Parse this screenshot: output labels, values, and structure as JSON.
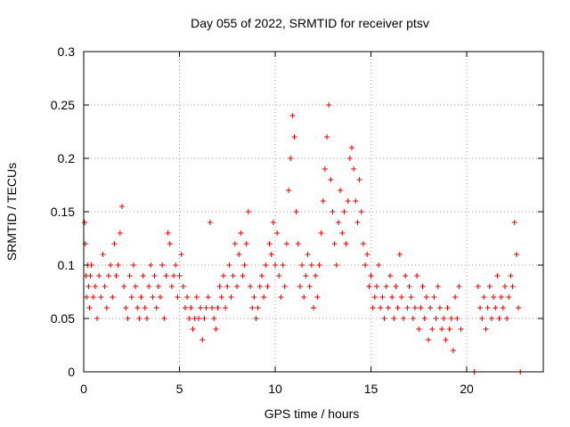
{
  "chart_data": {
    "type": "scatter",
    "title": "Day 055 of 2022, SRMTID for receiver ptsv",
    "xlabel": "GPS time / hours",
    "ylabel": "SRMTID / TECUs",
    "xlim": [
      0,
      24
    ],
    "ylim": [
      0,
      0.3
    ],
    "x_ticks": [
      0,
      5,
      10,
      15,
      20
    ],
    "y_ticks": [
      0,
      0.05,
      0.1,
      0.15,
      0.2,
      0.25,
      0.3
    ],
    "x_tick_labels": [
      "0",
      "5",
      "10",
      "15",
      "20"
    ],
    "y_tick_labels": [
      "0",
      "0.05",
      "0.1",
      "0.15",
      "0.2",
      "0.25",
      "0.3"
    ],
    "grid": true,
    "marker": "+",
    "series": [
      {
        "name": "SRMTID",
        "color": "#e00000",
        "points": [
          [
            0.05,
            0.14
          ],
          [
            0.08,
            0.12
          ],
          [
            0.12,
            0.09
          ],
          [
            0.15,
            0.07
          ],
          [
            0.2,
            0.1
          ],
          [
            0.25,
            0.08
          ],
          [
            0.3,
            0.06
          ],
          [
            0.35,
            0.09
          ],
          [
            0.4,
            0.1
          ],
          [
            0.5,
            0.07
          ],
          [
            0.6,
            0.08
          ],
          [
            0.7,
            0.05
          ],
          [
            0.8,
            0.09
          ],
          [
            0.9,
            0.07
          ],
          [
            1.0,
            0.11
          ],
          [
            1.1,
            0.08
          ],
          [
            1.2,
            0.06
          ],
          [
            1.3,
            0.09
          ],
          [
            1.4,
            0.1
          ],
          [
            1.5,
            0.07
          ],
          [
            1.6,
            0.12
          ],
          [
            1.7,
            0.09
          ],
          [
            1.8,
            0.1
          ],
          [
            1.9,
            0.13
          ],
          [
            2.0,
            0.155
          ],
          [
            2.1,
            0.08
          ],
          [
            2.2,
            0.06
          ],
          [
            2.3,
            0.05
          ],
          [
            2.4,
            0.09
          ],
          [
            2.5,
            0.07
          ],
          [
            2.6,
            0.1
          ],
          [
            2.7,
            0.08
          ],
          [
            2.8,
            0.06
          ],
          [
            2.9,
            0.05
          ],
          [
            3.0,
            0.07
          ],
          [
            3.1,
            0.09
          ],
          [
            3.2,
            0.06
          ],
          [
            3.3,
            0.05
          ],
          [
            3.4,
            0.08
          ],
          [
            3.5,
            0.1
          ],
          [
            3.6,
            0.07
          ],
          [
            3.7,
            0.09
          ],
          [
            3.8,
            0.06
          ],
          [
            3.9,
            0.08
          ],
          [
            4.0,
            0.07
          ],
          [
            4.1,
            0.1
          ],
          [
            4.2,
            0.05
          ],
          [
            4.3,
            0.09
          ],
          [
            4.4,
            0.13
          ],
          [
            4.5,
            0.12
          ],
          [
            4.6,
            0.08
          ],
          [
            4.7,
            0.09
          ],
          [
            4.8,
            0.1
          ],
          [
            4.9,
            0.07
          ],
          [
            5.0,
            0.09
          ],
          [
            5.1,
            0.11
          ],
          [
            5.2,
            0.08
          ],
          [
            5.3,
            0.06
          ],
          [
            5.4,
            0.07
          ],
          [
            5.5,
            0.05
          ],
          [
            5.6,
            0.06
          ],
          [
            5.7,
            0.04
          ],
          [
            5.8,
            0.05
          ],
          [
            5.9,
            0.07
          ],
          [
            6.0,
            0.05
          ],
          [
            6.1,
            0.06
          ],
          [
            6.2,
            0.03
          ],
          [
            6.3,
            0.05
          ],
          [
            6.4,
            0.06
          ],
          [
            6.5,
            0.07
          ],
          [
            6.6,
            0.14
          ],
          [
            6.7,
            0.06
          ],
          [
            6.8,
            0.05
          ],
          [
            6.9,
            0.04
          ],
          [
            7.0,
            0.06
          ],
          [
            7.1,
            0.08
          ],
          [
            7.2,
            0.07
          ],
          [
            7.3,
            0.09
          ],
          [
            7.4,
            0.06
          ],
          [
            7.5,
            0.08
          ],
          [
            7.6,
            0.1
          ],
          [
            7.7,
            0.07
          ],
          [
            7.8,
            0.09
          ],
          [
            7.9,
            0.12
          ],
          [
            8.0,
            0.08
          ],
          [
            8.1,
            0.11
          ],
          [
            8.2,
            0.13
          ],
          [
            8.3,
            0.09
          ],
          [
            8.4,
            0.1
          ],
          [
            8.5,
            0.12
          ],
          [
            8.6,
            0.15
          ],
          [
            8.7,
            0.08
          ],
          [
            8.8,
            0.06
          ],
          [
            8.9,
            0.07
          ],
          [
            9.0,
            0.05
          ],
          [
            9.1,
            0.06
          ],
          [
            9.2,
            0.08
          ],
          [
            9.3,
            0.09
          ],
          [
            9.4,
            0.07
          ],
          [
            9.5,
            0.1
          ],
          [
            9.6,
            0.08
          ],
          [
            9.7,
            0.12
          ],
          [
            9.8,
            0.11
          ],
          [
            9.9,
            0.14
          ],
          [
            10.0,
            0.1
          ],
          [
            10.1,
            0.13
          ],
          [
            10.2,
            0.09
          ],
          [
            10.3,
            0.07
          ],
          [
            10.4,
            0.1
          ],
          [
            10.5,
            0.08
          ],
          [
            10.6,
            0.12
          ],
          [
            10.7,
            0.17
          ],
          [
            10.8,
            0.2
          ],
          [
            10.9,
            0.24
          ],
          [
            11.0,
            0.22
          ],
          [
            11.1,
            0.15
          ],
          [
            11.2,
            0.12
          ],
          [
            11.3,
            0.08
          ],
          [
            11.4,
            0.1
          ],
          [
            11.5,
            0.07
          ],
          [
            11.6,
            0.09
          ],
          [
            11.7,
            0.11
          ],
          [
            11.8,
            0.08
          ],
          [
            11.9,
            0.1
          ],
          [
            12.0,
            0.06
          ],
          [
            12.1,
            0.09
          ],
          [
            12.2,
            0.07
          ],
          [
            12.3,
            0.1
          ],
          [
            12.4,
            0.13
          ],
          [
            12.5,
            0.16
          ],
          [
            12.6,
            0.19
          ],
          [
            12.7,
            0.22
          ],
          [
            12.8,
            0.25
          ],
          [
            12.9,
            0.18
          ],
          [
            13.0,
            0.15
          ],
          [
            13.1,
            0.12
          ],
          [
            13.2,
            0.1
          ],
          [
            13.3,
            0.14
          ],
          [
            13.4,
            0.17
          ],
          [
            13.5,
            0.13
          ],
          [
            13.6,
            0.15
          ],
          [
            13.7,
            0.12
          ],
          [
            13.8,
            0.16
          ],
          [
            13.9,
            0.2
          ],
          [
            14.0,
            0.21
          ],
          [
            14.1,
            0.19
          ],
          [
            14.2,
            0.16
          ],
          [
            14.3,
            0.14
          ],
          [
            14.4,
            0.18
          ],
          [
            14.5,
            0.15
          ],
          [
            14.6,
            0.12
          ],
          [
            14.7,
            0.1
          ],
          [
            14.8,
            0.11
          ],
          [
            14.9,
            0.08
          ],
          [
            15.0,
            0.09
          ],
          [
            15.1,
            0.06
          ],
          [
            15.2,
            0.07
          ],
          [
            15.3,
            0.08
          ],
          [
            15.4,
            0.1
          ],
          [
            15.5,
            0.06
          ],
          [
            15.6,
            0.07
          ],
          [
            15.7,
            0.05
          ],
          [
            15.8,
            0.08
          ],
          [
            15.9,
            0.06
          ],
          [
            16.0,
            0.09
          ],
          [
            16.1,
            0.07
          ],
          [
            16.2,
            0.05
          ],
          [
            16.3,
            0.08
          ],
          [
            16.4,
            0.06
          ],
          [
            16.5,
            0.11
          ],
          [
            16.6,
            0.07
          ],
          [
            16.7,
            0.05
          ],
          [
            16.8,
            0.09
          ],
          [
            16.9,
            0.06
          ],
          [
            17.0,
            0.08
          ],
          [
            17.1,
            0.07
          ],
          [
            17.2,
            0.05
          ],
          [
            17.3,
            0.06
          ],
          [
            17.4,
            0.09
          ],
          [
            17.5,
            0.04
          ],
          [
            17.6,
            0.06
          ],
          [
            17.7,
            0.08
          ],
          [
            17.8,
            0.05
          ],
          [
            17.9,
            0.07
          ],
          [
            18.0,
            0.03
          ],
          [
            18.1,
            0.06
          ],
          [
            18.2,
            0.04
          ],
          [
            18.3,
            0.07
          ],
          [
            18.4,
            0.05
          ],
          [
            18.5,
            0.08
          ],
          [
            18.6,
            0.06
          ],
          [
            18.7,
            0.04
          ],
          [
            18.8,
            0.05
          ],
          [
            18.9,
            0.03
          ],
          [
            19.0,
            0.06
          ],
          [
            19.1,
            0.04
          ],
          [
            19.2,
            0.05
          ],
          [
            19.3,
            0.02
          ],
          [
            19.4,
            0.07
          ],
          [
            19.5,
            0.05
          ],
          [
            19.6,
            0.08
          ],
          [
            19.7,
            0.04
          ],
          [
            20.4,
            0.0
          ],
          [
            20.6,
            0.08
          ],
          [
            20.7,
            0.06
          ],
          [
            20.8,
            0.05
          ],
          [
            20.9,
            0.07
          ],
          [
            21.0,
            0.04
          ],
          [
            21.1,
            0.06
          ],
          [
            21.2,
            0.08
          ],
          [
            21.3,
            0.05
          ],
          [
            21.4,
            0.07
          ],
          [
            21.5,
            0.06
          ],
          [
            21.6,
            0.09
          ],
          [
            21.7,
            0.05
          ],
          [
            21.8,
            0.07
          ],
          [
            21.9,
            0.06
          ],
          [
            22.0,
            0.08
          ],
          [
            22.1,
            0.05
          ],
          [
            22.2,
            0.07
          ],
          [
            22.3,
            0.09
          ],
          [
            22.4,
            0.08
          ],
          [
            22.5,
            0.14
          ],
          [
            22.6,
            0.11
          ],
          [
            22.7,
            0.06
          ],
          [
            22.8,
            0.0
          ]
        ]
      }
    ]
  }
}
